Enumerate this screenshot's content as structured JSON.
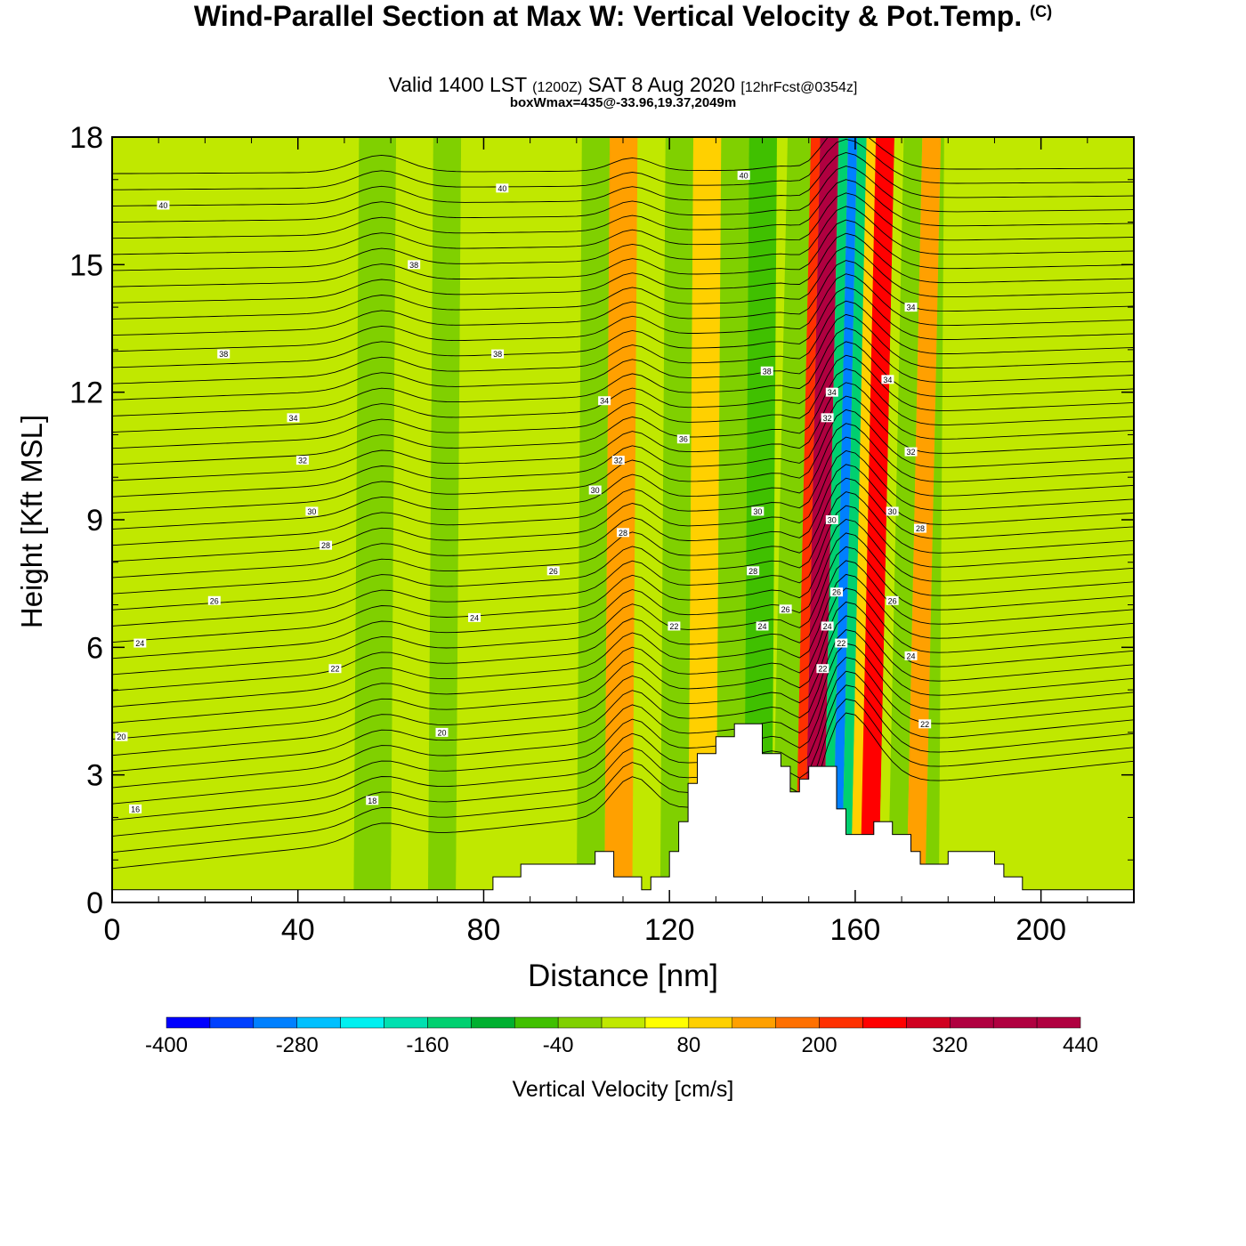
{
  "header": {
    "title": "Wind-Parallel Section at Max W: Vertical Velocity & Pot.Temp.",
    "copyright": "(C)",
    "valid_prefix": "Valid 1400 LST",
    "valid_utc": "(1200Z)",
    "valid_date": "SAT 8 Aug 2020",
    "forecast": "[12hrFcst@0354z]",
    "boxwmax": "boxWmax=435@-33.96,19.37,2049m"
  },
  "colors": {
    "palette": [
      "#0000ff",
      "#0040ff",
      "#0080ff",
      "#00c0ff",
      "#00f0f0",
      "#00e0b0",
      "#00d070",
      "#00b030",
      "#40c000",
      "#80d000",
      "#c0e800",
      "#ffff00",
      "#ffd000",
      "#ffa000",
      "#ff7000",
      "#ff3000",
      "#ff0000",
      "#d00020",
      "#b00040"
    ]
  },
  "chart_data": {
    "type": "heatmap",
    "xlabel": "Distance [nm]",
    "ylabel": "Height [Kft MSL]",
    "xlim": [
      0,
      220
    ],
    "ylim": [
      0,
      18
    ],
    "xticks": [
      0,
      40,
      80,
      120,
      160,
      200
    ],
    "yticks": [
      0,
      3,
      6,
      9,
      12,
      15,
      18
    ],
    "colorbar": {
      "label": "Vertical Velocity [cm/s]",
      "min": -400,
      "max": 440,
      "step": 40,
      "tick_labels": [
        "-400",
        "-280",
        "-160",
        "-40",
        "80",
        "200",
        "320",
        "440"
      ]
    },
    "vertical_velocity_bands": [
      {
        "x": [
          0,
          52
        ],
        "w": 0
      },
      {
        "x": [
          52,
          60
        ],
        "w": -40
      },
      {
        "x": [
          60,
          68
        ],
        "w": 0
      },
      {
        "x": [
          68,
          74
        ],
        "w": -40
      },
      {
        "x": [
          74,
          100
        ],
        "w": 0
      },
      {
        "x": [
          100,
          106
        ],
        "w": -40
      },
      {
        "x": [
          106,
          112
        ],
        "w": 120
      },
      {
        "x": [
          112,
          118
        ],
        "w": 0
      },
      {
        "x": [
          118,
          124
        ],
        "w": -40
      },
      {
        "x": [
          124,
          130
        ],
        "w": 80
      },
      {
        "x": [
          130,
          136
        ],
        "w": -40
      },
      {
        "x": [
          136,
          142
        ],
        "w": -80
      },
      {
        "x": [
          142,
          147
        ],
        "w": -40
      },
      {
        "x": [
          147,
          149
        ],
        "w": 200
      },
      {
        "x": [
          149,
          153
        ],
        "w": 400
      },
      {
        "x": [
          153,
          155
        ],
        "w": -160
      },
      {
        "x": [
          155,
          157
        ],
        "w": -300
      },
      {
        "x": [
          157,
          159
        ],
        "w": -160
      },
      {
        "x": [
          159,
          161
        ],
        "w": 80
      },
      {
        "x": [
          161,
          165
        ],
        "w": 240
      },
      {
        "x": [
          165,
          167
        ],
        "w": 0
      },
      {
        "x": [
          167,
          171
        ],
        "w": -40
      },
      {
        "x": [
          171,
          175
        ],
        "w": 120
      },
      {
        "x": [
          175,
          178
        ],
        "w": -40
      },
      {
        "x": [
          178,
          220
        ],
        "w": 0
      }
    ],
    "terrain": [
      [
        0,
        0.3
      ],
      [
        82,
        0.3
      ],
      [
        82,
        0.6
      ],
      [
        88,
        0.6
      ],
      [
        88,
        0.9
      ],
      [
        104,
        0.9
      ],
      [
        104,
        1.2
      ],
      [
        108,
        1.2
      ],
      [
        108,
        0.6
      ],
      [
        114,
        0.6
      ],
      [
        114,
        0.3
      ],
      [
        116,
        0.3
      ],
      [
        116,
        0.6
      ],
      [
        120,
        0.6
      ],
      [
        120,
        1.2
      ],
      [
        122,
        1.2
      ],
      [
        122,
        1.9
      ],
      [
        124,
        1.9
      ],
      [
        124,
        2.8
      ],
      [
        126,
        2.8
      ],
      [
        126,
        3.5
      ],
      [
        130,
        3.5
      ],
      [
        130,
        3.9
      ],
      [
        134,
        3.9
      ],
      [
        134,
        4.2
      ],
      [
        140,
        4.2
      ],
      [
        140,
        3.5
      ],
      [
        144,
        3.5
      ],
      [
        144,
        3.2
      ],
      [
        146,
        3.2
      ],
      [
        146,
        2.6
      ],
      [
        148,
        2.6
      ],
      [
        148,
        2.9
      ],
      [
        150,
        2.9
      ],
      [
        150,
        3.2
      ],
      [
        156,
        3.2
      ],
      [
        156,
        2.2
      ],
      [
        158,
        2.2
      ],
      [
        158,
        1.6
      ],
      [
        164,
        1.6
      ],
      [
        164,
        1.9
      ],
      [
        168,
        1.9
      ],
      [
        168,
        1.6
      ],
      [
        172,
        1.6
      ],
      [
        172,
        1.2
      ],
      [
        174,
        1.2
      ],
      [
        174,
        0.9
      ],
      [
        180,
        0.9
      ],
      [
        180,
        1.2
      ],
      [
        190,
        1.2
      ],
      [
        190,
        0.9
      ],
      [
        192,
        0.9
      ],
      [
        192,
        0.6
      ],
      [
        196,
        0.6
      ],
      [
        196,
        0.3
      ],
      [
        220,
        0.3
      ]
    ],
    "isentrope_labels": [
      {
        "text": "40",
        "x": 11,
        "y": 16.4
      },
      {
        "text": "40",
        "x": 84,
        "y": 16.8
      },
      {
        "text": "40",
        "x": 136,
        "y": 17.1
      },
      {
        "text": "38",
        "x": 65,
        "y": 15.0
      },
      {
        "text": "38",
        "x": 24,
        "y": 12.9
      },
      {
        "text": "38",
        "x": 83,
        "y": 12.9
      },
      {
        "text": "38",
        "x": 141,
        "y": 12.5
      },
      {
        "text": "36",
        "x": 123,
        "y": 10.9
      },
      {
        "text": "34",
        "x": 39,
        "y": 11.4
      },
      {
        "text": "34",
        "x": 106,
        "y": 11.8
      },
      {
        "text": "34",
        "x": 155,
        "y": 12.0
      },
      {
        "text": "34",
        "x": 167,
        "y": 12.3
      },
      {
        "text": "34",
        "x": 172,
        "y": 14.0
      },
      {
        "text": "32",
        "x": 41,
        "y": 10.4
      },
      {
        "text": "32",
        "x": 109,
        "y": 10.4
      },
      {
        "text": "32",
        "x": 154,
        "y": 11.4
      },
      {
        "text": "32",
        "x": 172,
        "y": 10.6
      },
      {
        "text": "30",
        "x": 43,
        "y": 9.2
      },
      {
        "text": "30",
        "x": 104,
        "y": 9.7
      },
      {
        "text": "30",
        "x": 139,
        "y": 9.2
      },
      {
        "text": "30",
        "x": 155,
        "y": 9.0
      },
      {
        "text": "30",
        "x": 168,
        "y": 9.2
      },
      {
        "text": "28",
        "x": 46,
        "y": 8.4
      },
      {
        "text": "28",
        "x": 110,
        "y": 8.7
      },
      {
        "text": "28",
        "x": 138,
        "y": 7.8
      },
      {
        "text": "28",
        "x": 174,
        "y": 8.8
      },
      {
        "text": "26",
        "x": 22,
        "y": 7.1
      },
      {
        "text": "26",
        "x": 95,
        "y": 7.8
      },
      {
        "text": "26",
        "x": 145,
        "y": 6.9
      },
      {
        "text": "26",
        "x": 156,
        "y": 7.3
      },
      {
        "text": "26",
        "x": 168,
        "y": 7.1
      },
      {
        "text": "24",
        "x": 6,
        "y": 6.1
      },
      {
        "text": "24",
        "x": 78,
        "y": 6.7
      },
      {
        "text": "24",
        "x": 140,
        "y": 6.5
      },
      {
        "text": "24",
        "x": 154,
        "y": 6.5
      },
      {
        "text": "24",
        "x": 172,
        "y": 5.8
      },
      {
        "text": "22",
        "x": 48,
        "y": 5.5
      },
      {
        "text": "22",
        "x": 121,
        "y": 6.5
      },
      {
        "text": "22",
        "x": 153,
        "y": 5.5
      },
      {
        "text": "22",
        "x": 157,
        "y": 6.1
      },
      {
        "text": "22",
        "x": 175,
        "y": 4.2
      },
      {
        "text": "20",
        "x": 2,
        "y": 3.9
      },
      {
        "text": "20",
        "x": 71,
        "y": 4.0
      },
      {
        "text": "18",
        "x": 56,
        "y": 2.4
      },
      {
        "text": "16",
        "x": 5,
        "y": 2.2
      }
    ]
  }
}
